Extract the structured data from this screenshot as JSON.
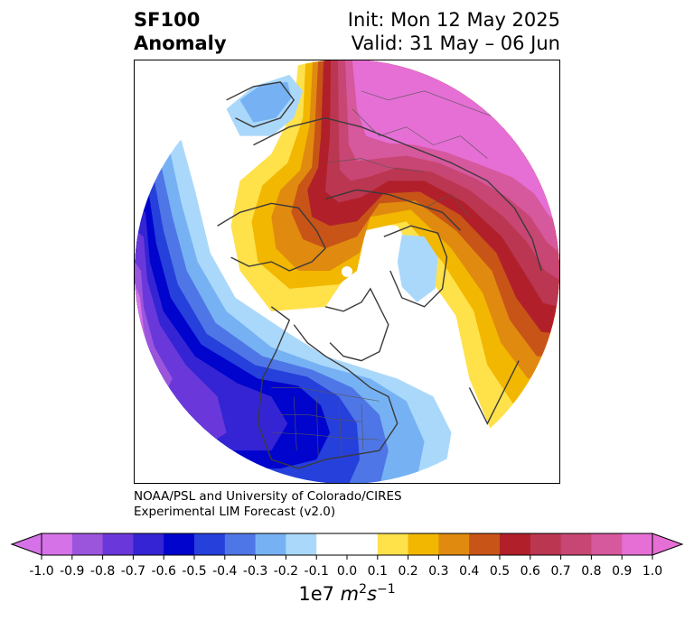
{
  "title": {
    "variable": "SF100",
    "kind": "Anomaly",
    "init": "Init: Mon 12 May 2025",
    "valid": "Valid: 31 May – 06 Jun"
  },
  "credit": {
    "line1": "NOAA/PSL and University of Colorado/CIRES",
    "line2": "Experimental LIM Forecast (v2.0)"
  },
  "colorbar": {
    "ticks": [
      "-1.0",
      "-0.9",
      "-0.8",
      "-0.7",
      "-0.6",
      "-0.5",
      "-0.4",
      "-0.3",
      "-0.2",
      "-0.1",
      "0.0",
      "0.1",
      "0.2",
      "0.3",
      "0.4",
      "0.5",
      "0.6",
      "0.7",
      "0.8",
      "0.9",
      "1.0"
    ],
    "colors": [
      "#d672e8",
      "#9b55dd",
      "#6a38da",
      "#3424d3",
      "#0004cc",
      "#2640db",
      "#4f76e6",
      "#76b2f3",
      "#aad8fb",
      "#ffffff",
      "#ffffff",
      "#ffe14a",
      "#f2b700",
      "#e08a0f",
      "#c85417",
      "#b1202a",
      "#bb3651",
      "#c84673",
      "#d6589d",
      "#e56fd5"
    ],
    "under_color": "#d672e8",
    "over_color": "#e56fd5",
    "units_prefix": "1e7 ",
    "units_m": "m",
    "units_m_exp": "2",
    "units_s": "s",
    "units_s_exp": "−1"
  }
}
